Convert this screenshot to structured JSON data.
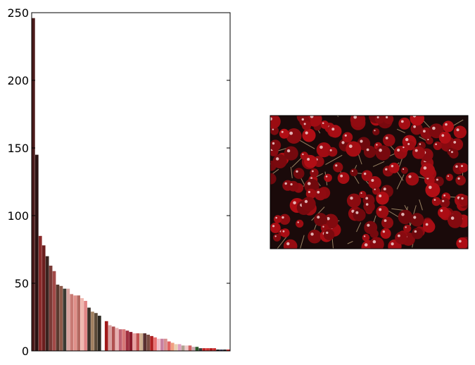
{
  "chart_data": {
    "type": "bar",
    "title": "",
    "xlabel": "",
    "ylabel": "",
    "ylim": [
      0,
      250
    ],
    "yticks": [
      0,
      50,
      100,
      150,
      200,
      250
    ],
    "ytick_labels": [
      "0",
      "50",
      "100",
      "150",
      "200",
      "250"
    ],
    "x_ticks_shown": false,
    "grid": false,
    "legend": "none",
    "bars": [
      {
        "value": 246,
        "color": "#4a1a1a"
      },
      {
        "value": 145,
        "color": "#2a1212"
      },
      {
        "value": 85,
        "color": "#8a2a2a"
      },
      {
        "value": 78,
        "color": "#6b1e1e"
      },
      {
        "value": 70,
        "color": "#3a2420"
      },
      {
        "value": 63,
        "color": "#7a3a36"
      },
      {
        "value": 59,
        "color": "#a34a48"
      },
      {
        "value": 49,
        "color": "#5a3a30"
      },
      {
        "value": 48,
        "color": "#8e5a4a"
      },
      {
        "value": 46,
        "color": "#3a3a32"
      },
      {
        "value": 46,
        "color": "#d9a5a0"
      },
      {
        "value": 42,
        "color": "#c87a74"
      },
      {
        "value": 41,
        "color": "#e0908a"
      },
      {
        "value": 41,
        "color": "#b46860"
      },
      {
        "value": 39,
        "color": "#f0b8b0"
      },
      {
        "value": 37,
        "color": "#e08484"
      },
      {
        "value": 32,
        "color": "#3c3028"
      },
      {
        "value": 29,
        "color": "#a08060"
      },
      {
        "value": 28,
        "color": "#5a4a38"
      },
      {
        "value": 26,
        "color": "#2e2a22"
      },
      {
        "value": 0,
        "color": "#ffffff"
      },
      {
        "value": 22,
        "color": "#a01a1a"
      },
      {
        "value": 19,
        "color": "#d8a0a0"
      },
      {
        "value": 18,
        "color": "#b05050"
      },
      {
        "value": 17,
        "color": "#e8b0b0"
      },
      {
        "value": 16,
        "color": "#c06070"
      },
      {
        "value": 16,
        "color": "#d87878"
      },
      {
        "value": 15,
        "color": "#a03040"
      },
      {
        "value": 14,
        "color": "#8a1a2a"
      },
      {
        "value": 13,
        "color": "#e8a0a0"
      },
      {
        "value": 13,
        "color": "#c05050"
      },
      {
        "value": 13,
        "color": "#d0b090"
      },
      {
        "value": 13,
        "color": "#5a3030"
      },
      {
        "value": 12,
        "color": "#7a4a40"
      },
      {
        "value": 11,
        "color": "#b02020"
      },
      {
        "value": 10,
        "color": "#e87070"
      },
      {
        "value": 9,
        "color": "#f0c0c8"
      },
      {
        "value": 9,
        "color": "#c880a0"
      },
      {
        "value": 9,
        "color": "#d89090"
      },
      {
        "value": 7,
        "color": "#e06060"
      },
      {
        "value": 6,
        "color": "#f0a080"
      },
      {
        "value": 5,
        "color": "#e8d0b0"
      },
      {
        "value": 5,
        "color": "#e0a0c0"
      },
      {
        "value": 4,
        "color": "#b0a090"
      },
      {
        "value": 4,
        "color": "#f0c8c8"
      },
      {
        "value": 4,
        "color": "#d06060"
      },
      {
        "value": 3,
        "color": "#c8a8b0"
      },
      {
        "value": 3,
        "color": "#2a5a2a"
      },
      {
        "value": 2,
        "color": "#3a3a3a"
      },
      {
        "value": 2,
        "color": "#c02020"
      },
      {
        "value": 2,
        "color": "#d03030"
      },
      {
        "value": 2,
        "color": "#b01a1a"
      },
      {
        "value": 2,
        "color": "#c82828"
      },
      {
        "value": 1,
        "color": "#1a1a1a"
      },
      {
        "value": 1,
        "color": "#2a2a4a"
      },
      {
        "value": 1,
        "color": "#202020"
      },
      {
        "value": 1,
        "color": "#c01818"
      }
    ]
  },
  "image_panel": {
    "subject": "cherries",
    "colors": {
      "background": "#1a0a0a",
      "cherry": "#a0101a",
      "highlight": "#f0d0d0",
      "stem": "#b8a078"
    }
  }
}
